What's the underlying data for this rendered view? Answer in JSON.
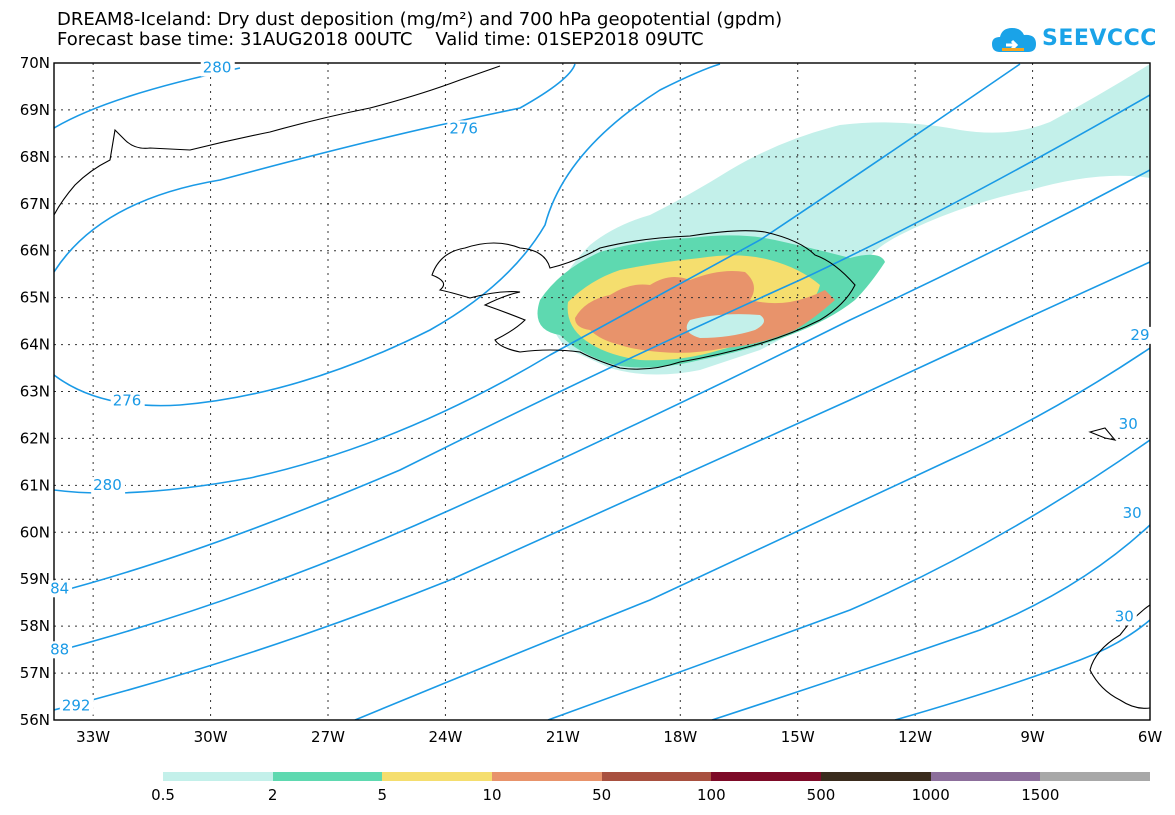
{
  "title": {
    "line1": "DREAM8-Iceland: Dry dust deposition (mg/m²) and 700 hPa geopotential (gpdm)",
    "line2": "Forecast base time: 31AUG2018 00UTC    Valid time: 01SEP2018 09UTC"
  },
  "logo": {
    "text": "SEEVCCC",
    "icon": "cloud-icon",
    "color": "#1aa3e8"
  },
  "map": {
    "lat_labels": [
      "70N",
      "69N",
      "68N",
      "67N",
      "66N",
      "65N",
      "64N",
      "63N",
      "62N",
      "61N",
      "60N",
      "59N",
      "58N",
      "57N",
      "56N"
    ],
    "lon_labels": [
      "33W",
      "30W",
      "27W",
      "24W",
      "21W",
      "18W",
      "15W",
      "12W",
      "9W",
      "6W"
    ],
    "contour_labels": [
      {
        "text": "280",
        "lon": -30.2,
        "lat": 69.8
      },
      {
        "text": "276",
        "lon": -23.9,
        "lat": 68.5
      },
      {
        "text": "276",
        "lon": -32.5,
        "lat": 62.7
      },
      {
        "text": "280",
        "lon": -33.0,
        "lat": 60.9
      },
      {
        "text": "84",
        "lon": -34.1,
        "lat": 58.7
      },
      {
        "text": "88",
        "lon": -34.1,
        "lat": 57.4
      },
      {
        "text": "292",
        "lon": -33.8,
        "lat": 56.2
      },
      {
        "text": "29",
        "lon": -6.5,
        "lat": 64.1
      },
      {
        "text": "30",
        "lon": -6.8,
        "lat": 62.2
      },
      {
        "text": "30",
        "lon": -6.7,
        "lat": 60.3
      },
      {
        "text": "30",
        "lon": -6.9,
        "lat": 58.1
      }
    ],
    "contour_color": "#1a9ae6",
    "coast_color": "#000000"
  },
  "legend": {
    "colors": [
      "#c3f0ea",
      "#5ed9b0",
      "#f5de6e",
      "#e8936b",
      "#a8503f",
      "#7d0a27",
      "#3a2b1d",
      "#8c6e9b",
      "#a8a8a8"
    ],
    "labels": [
      "0.5",
      "2",
      "5",
      "10",
      "50",
      "100",
      "500",
      "1000",
      "1500"
    ]
  }
}
